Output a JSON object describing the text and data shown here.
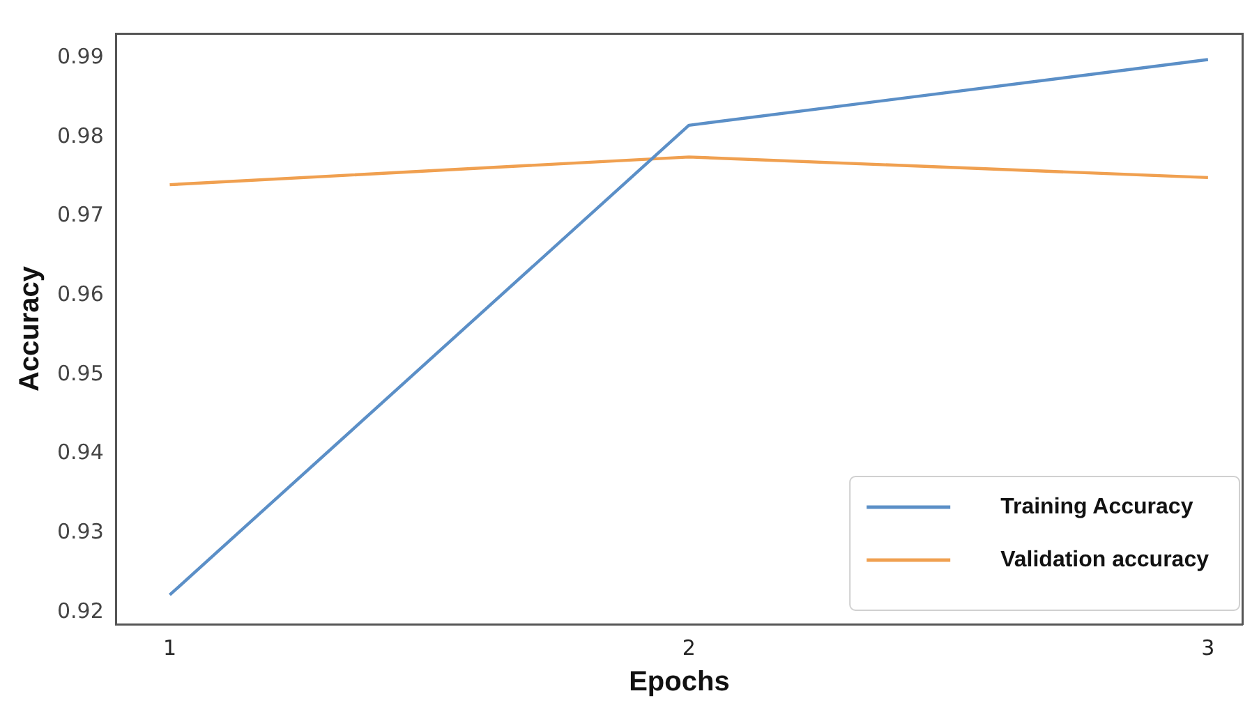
{
  "chart_data": {
    "type": "line",
    "xlabel": "Epochs",
    "ylabel": "Accuracy",
    "x": [
      1,
      2,
      3
    ],
    "series": [
      {
        "name": "Training Accuracy",
        "color": "#5b8fc7",
        "values": [
          0.9222,
          0.9815,
          0.9898
        ]
      },
      {
        "name": "Validation accuracy",
        "color": "#f0a050",
        "values": [
          0.974,
          0.9775,
          0.9749
        ]
      }
    ],
    "xlim": [
      0.897,
      3.066
    ],
    "xticks": [
      1,
      2,
      3
    ],
    "ylim": [
      0.9185,
      0.9931
    ],
    "yticks": [
      0.92,
      0.93,
      0.94,
      0.95,
      0.96,
      0.97,
      0.98,
      0.99
    ],
    "grid": false,
    "legend": "bottom right",
    "marker": "none",
    "line_style": "solid"
  }
}
